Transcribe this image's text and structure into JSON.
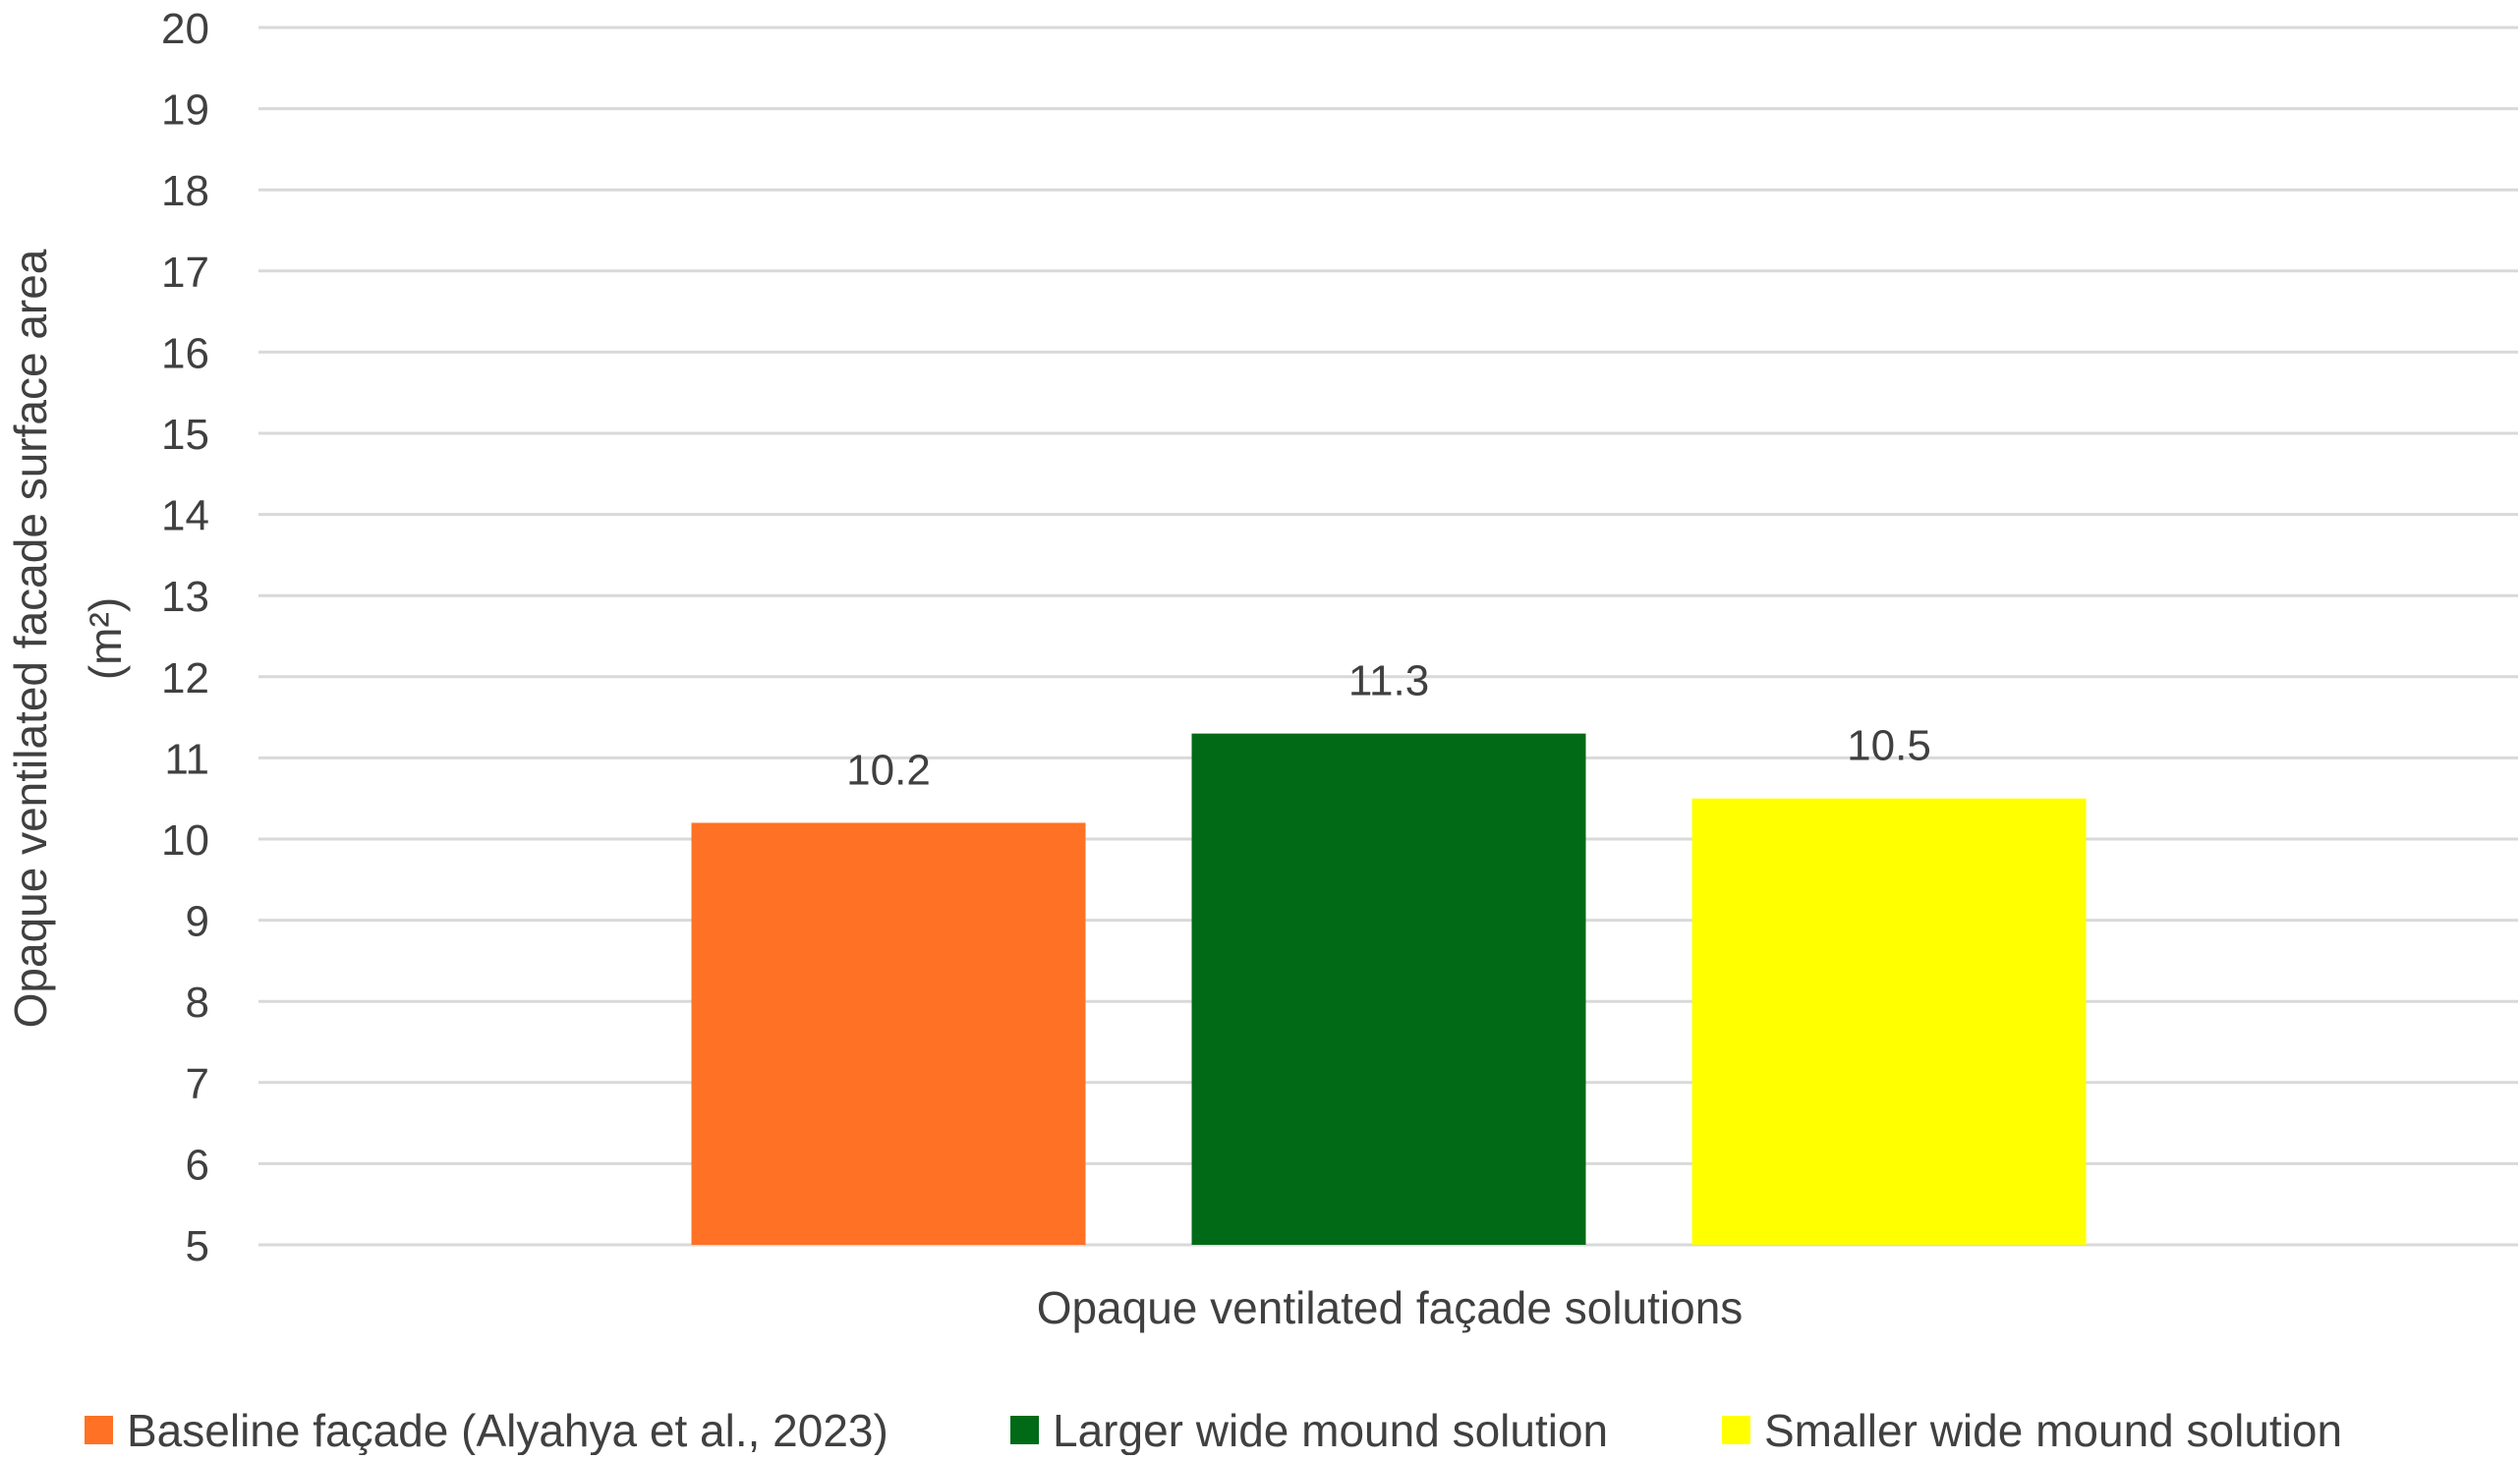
{
  "chart_data": {
    "type": "bar",
    "xlabel": "Opaque ventilated façade solutions",
    "ylabel": "Opaque ventilated facade surface area",
    "ylabel_unit": "(m²)",
    "ylim": [
      5,
      20
    ],
    "ytick_step": 1,
    "grid": true,
    "legend_position": "bottom",
    "series": [
      {
        "name": "Baseline façade (Alyahya et al., 2023)",
        "value": 10.2,
        "label": "10.2",
        "color": "#FF7124"
      },
      {
        "name": "Larger wide mound solution",
        "value": 11.3,
        "label": "11.3",
        "color": "#006A17"
      },
      {
        "name": "Smaller wide mound solution",
        "value": 10.5,
        "label": "10.5",
        "color": "#FFFF00"
      }
    ]
  }
}
